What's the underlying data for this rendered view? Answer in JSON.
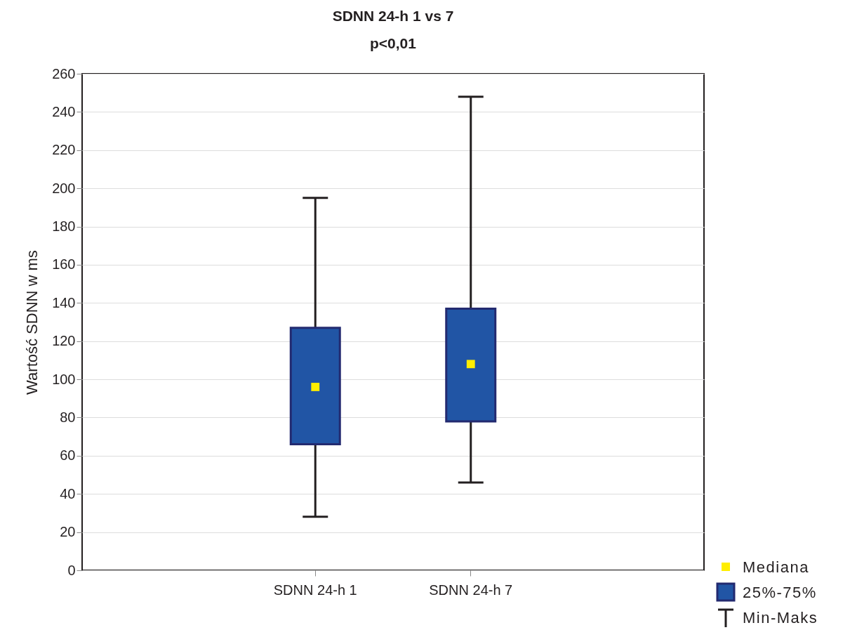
{
  "chart_data": {
    "type": "box",
    "title": "SDNN 24-h 1 vs 7",
    "subtitle": "p<0,01",
    "ylabel": "Wartość SDNN w ms",
    "categories": [
      "SDNN 24-h 1",
      "SDNN 24-h 7"
    ],
    "boxes": [
      {
        "low": 28,
        "q1": 66,
        "median": 96,
        "q3": 127,
        "high": 195
      },
      {
        "low": 46,
        "q1": 78,
        "median": 108,
        "q3": 137,
        "high": 248
      }
    ],
    "color": "#2155a5",
    "annotations": [
      "Mediana",
      "25%-75%",
      "Min-Maks"
    ],
    "ylim": [
      0,
      260
    ],
    "yticks": [
      0,
      20,
      40,
      60,
      80,
      100,
      120,
      140,
      160,
      180,
      200,
      220,
      240,
      260
    ],
    "grid": "y"
  }
}
